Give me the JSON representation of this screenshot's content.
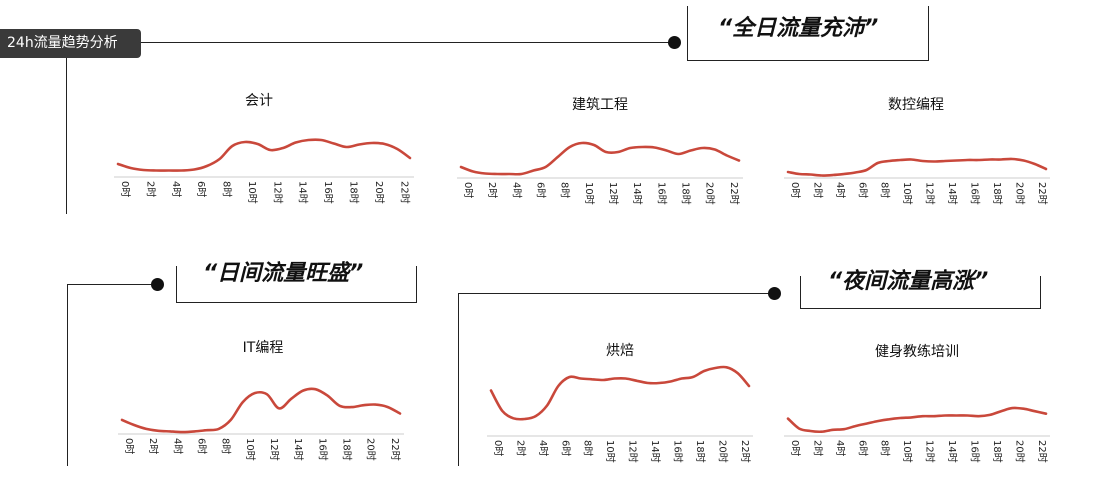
{
  "header_tag": "24h流量趋势分析",
  "slogans": {
    "all_day": "“全日流量充沛”",
    "daytime": "“日间流量旺盛”",
    "night": "“夜间流量高涨”"
  },
  "colors": {
    "line": "#c9483b",
    "axis": "#cccccc",
    "tag_bg": "#3a3a3a"
  },
  "chart_data": [
    {
      "type": "line",
      "title": "会计",
      "categories": [
        "0时",
        "2时",
        "4时",
        "6时",
        "8时",
        "10时",
        "12时",
        "14时",
        "16时",
        "18时",
        "20时",
        "22时"
      ],
      "x": [
        0,
        1,
        2,
        3,
        4,
        5,
        6,
        7,
        8,
        9,
        10,
        11,
        12,
        13,
        14,
        15,
        16,
        17,
        18,
        19,
        20,
        21,
        22,
        23
      ],
      "values": [
        22,
        14,
        10,
        9,
        9,
        9,
        11,
        18,
        32,
        58,
        66,
        62,
        50,
        54,
        65,
        70,
        70,
        63,
        56,
        61,
        64,
        62,
        52,
        34
      ],
      "ylim": [
        0,
        100
      ]
    },
    {
      "type": "line",
      "title": "建筑工程",
      "categories": [
        "0时",
        "2时",
        "4时",
        "6时",
        "8时",
        "10时",
        "12时",
        "14时",
        "16时",
        "18时",
        "20时",
        "22时"
      ],
      "x": [
        0,
        1,
        2,
        3,
        4,
        5,
        6,
        7,
        8,
        9,
        10,
        11,
        12,
        13,
        14,
        15,
        16,
        17,
        18,
        19,
        20,
        21,
        22,
        23
      ],
      "values": [
        22,
        13,
        9,
        8,
        8,
        8,
        15,
        22,
        42,
        62,
        70,
        66,
        52,
        52,
        60,
        62,
        61,
        55,
        48,
        55,
        60,
        57,
        45,
        35
      ],
      "ylim": [
        0,
        100
      ]
    },
    {
      "type": "line",
      "title": "数控编程",
      "categories": [
        "0时",
        "2时",
        "4时",
        "6时",
        "8时",
        "10时",
        "12时",
        "14时",
        "16时",
        "18时",
        "20时",
        "22时"
      ],
      "x": [
        0,
        1,
        2,
        3,
        4,
        5,
        6,
        7,
        8,
        9,
        10,
        11,
        12,
        13,
        14,
        15,
        16,
        17,
        18,
        19,
        20,
        21,
        22,
        23
      ],
      "values": [
        12,
        8,
        7,
        5,
        6,
        8,
        11,
        16,
        30,
        34,
        36,
        37,
        34,
        33,
        34,
        35,
        36,
        36,
        37,
        37,
        38,
        35,
        28,
        18
      ],
      "ylim": [
        0,
        100
      ]
    },
    {
      "type": "line",
      "title": "IT编程",
      "categories": [
        "0时",
        "2时",
        "4时",
        "6时",
        "8时",
        "10时",
        "12时",
        "14时",
        "16时",
        "18时",
        "20时",
        "22时"
      ],
      "x": [
        0,
        1,
        2,
        3,
        4,
        5,
        6,
        7,
        8,
        9,
        10,
        11,
        12,
        13,
        14,
        15,
        16,
        17,
        18,
        19,
        20,
        21,
        22,
        23
      ],
      "values": [
        22,
        14,
        8,
        5,
        4,
        3,
        4,
        6,
        8,
        22,
        50,
        64,
        62,
        40,
        55,
        68,
        70,
        60,
        44,
        42,
        45,
        46,
        42,
        32
      ],
      "ylim": [
        0,
        100
      ]
    },
    {
      "type": "line",
      "title": "烘焙",
      "categories": [
        "0时",
        "2时",
        "4时",
        "6时",
        "8时",
        "10时",
        "12时",
        "14时",
        "16时",
        "18时",
        "20时",
        "22时"
      ],
      "x": [
        0,
        1,
        2,
        3,
        4,
        5,
        6,
        7,
        8,
        9,
        10,
        11,
        12,
        13,
        14,
        15,
        16,
        17,
        18,
        19,
        20,
        21,
        22,
        23
      ],
      "values": [
        62,
        35,
        25,
        24,
        28,
        42,
        68,
        80,
        78,
        77,
        76,
        78,
        78,
        75,
        72,
        72,
        74,
        78,
        80,
        88,
        92,
        93,
        85,
        68
      ],
      "ylim": [
        0,
        100
      ]
    },
    {
      "type": "line",
      "title": "健身教练培训",
      "categories": [
        "0时",
        "2时",
        "4时",
        "6时",
        "8时",
        "10时",
        "12时",
        "14时",
        "16时",
        "18时",
        "20时",
        "22时"
      ],
      "x": [
        0,
        1,
        2,
        3,
        4,
        5,
        6,
        7,
        8,
        9,
        10,
        11,
        12,
        13,
        14,
        15,
        16,
        17,
        18,
        19,
        20,
        21,
        22,
        23
      ],
      "values": [
        28,
        12,
        8,
        7,
        10,
        11,
        16,
        20,
        24,
        27,
        29,
        30,
        32,
        32,
        33,
        33,
        33,
        32,
        34,
        40,
        45,
        44,
        40,
        36
      ],
      "ylim": [
        0,
        100
      ]
    }
  ]
}
